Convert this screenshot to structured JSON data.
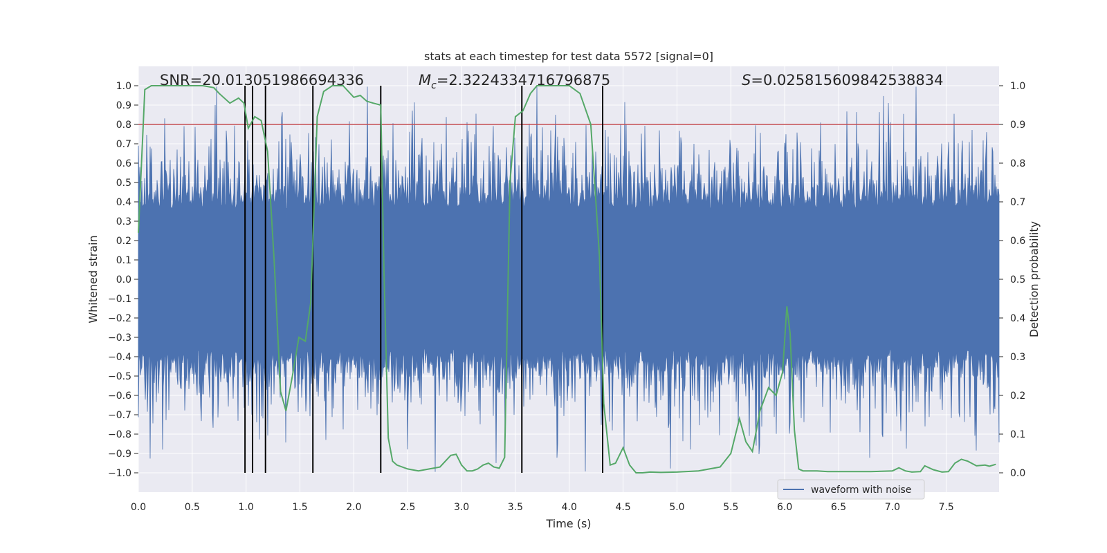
{
  "chart_data": {
    "type": "line",
    "title": "stats at each timestep for test data 5572 [signal=0]",
    "xlabel": "Time (s)",
    "ylabel": "Whitened strain",
    "y2label": "Detection probability",
    "xlim": [
      0.0,
      7.99
    ],
    "ylim": [
      -1.1,
      1.1
    ],
    "y2lim": [
      -0.05,
      1.05
    ],
    "x_ticks": [
      "0.0",
      "0.5",
      "1.0",
      "1.5",
      "2.0",
      "2.5",
      "3.0",
      "3.5",
      "4.0",
      "4.5",
      "5.0",
      "5.5",
      "6.0",
      "6.5",
      "7.0",
      "7.5"
    ],
    "y_ticks": [
      "−1.0",
      "−0.9",
      "−0.8",
      "−0.7",
      "−0.6",
      "−0.5",
      "−0.4",
      "−0.3",
      "−0.2",
      "−0.1",
      "0.0",
      "0.1",
      "0.2",
      "0.3",
      "0.4",
      "0.5",
      "0.6",
      "0.7",
      "0.8",
      "0.9",
      "1.0"
    ],
    "y2_ticks": [
      "0.0",
      "0.1",
      "0.2",
      "0.3",
      "0.4",
      "0.5",
      "0.6",
      "0.7",
      "0.8",
      "0.9",
      "1.0"
    ],
    "grid": true,
    "annotations": {
      "snr": "SNR=20.013051986694336",
      "mc_symbol": "M",
      "mc_sub": "c",
      "mc_value": "=2.3224334716796875",
      "s_symbol": "S",
      "s_value": "=0.025815609842538834"
    },
    "threshold": {
      "value": 0.8,
      "color": "#c44e52",
      "axis": "left"
    },
    "event_lines": [
      0.99,
      1.06,
      1.18,
      1.62,
      2.25,
      3.56,
      4.31
    ],
    "legend": {
      "entries": [
        "waveform with noise"
      ],
      "placement": "lower right"
    },
    "series": [
      {
        "name": "waveform with noise",
        "color": "#4c72b0",
        "axis": "left",
        "description": "dense whitened noise band roughly ±0.4 with spikes up to ±1.0"
      },
      {
        "name": "detection probability",
        "color": "#55a868",
        "axis": "right",
        "x": [
          0.0,
          0.06,
          0.12,
          0.2,
          0.3,
          0.4,
          0.5,
          0.6,
          0.7,
          0.75,
          0.85,
          0.93,
          0.98,
          1.02,
          1.08,
          1.14,
          1.2,
          1.26,
          1.32,
          1.37,
          1.43,
          1.49,
          1.55,
          1.6,
          1.66,
          1.72,
          1.8,
          1.9,
          2.0,
          2.06,
          2.12,
          2.18,
          2.25,
          2.28,
          2.32,
          2.36,
          2.4,
          2.5,
          2.6,
          2.7,
          2.8,
          2.9,
          2.95,
          3.0,
          3.05,
          3.1,
          3.15,
          3.2,
          3.25,
          3.3,
          3.35,
          3.4,
          3.45,
          3.5,
          3.57,
          3.64,
          3.7,
          3.75,
          3.81,
          3.88,
          4.0,
          4.1,
          4.2,
          4.28,
          4.32,
          4.38,
          4.43,
          4.5,
          4.56,
          4.62,
          4.68,
          4.75,
          4.85,
          5.0,
          5.2,
          5.4,
          5.5,
          5.58,
          5.64,
          5.7,
          5.77,
          5.85,
          5.92,
          5.98,
          6.02,
          6.05,
          6.09,
          6.13,
          6.17,
          6.2,
          6.3,
          6.4,
          6.5,
          6.6,
          6.8,
          7.0,
          7.06,
          7.12,
          7.18,
          7.26,
          7.3,
          7.38,
          7.46,
          7.52,
          7.58,
          7.64,
          7.7,
          7.78,
          7.86,
          7.9,
          7.96
        ],
        "values": [
          0.62,
          0.99,
          1.0,
          1.0,
          1.0,
          1.0,
          1.0,
          1.0,
          0.995,
          0.98,
          0.955,
          0.968,
          0.955,
          0.89,
          0.92,
          0.91,
          0.83,
          0.55,
          0.21,
          0.16,
          0.25,
          0.35,
          0.34,
          0.44,
          0.92,
          0.985,
          1.0,
          1.0,
          0.97,
          0.975,
          0.96,
          0.955,
          0.95,
          0.52,
          0.09,
          0.03,
          0.02,
          0.01,
          0.005,
          0.01,
          0.015,
          0.045,
          0.048,
          0.02,
          0.005,
          0.005,
          0.01,
          0.02,
          0.025,
          0.015,
          0.012,
          0.04,
          0.75,
          0.92,
          0.935,
          0.98,
          1.0,
          1.0,
          1.0,
          1.0,
          1.0,
          0.98,
          0.9,
          0.56,
          0.18,
          0.02,
          0.025,
          0.065,
          0.02,
          0.0,
          0.0,
          0.002,
          0.001,
          0.002,
          0.005,
          0.015,
          0.05,
          0.14,
          0.08,
          0.055,
          0.16,
          0.22,
          0.2,
          0.26,
          0.43,
          0.36,
          0.11,
          0.01,
          0.005,
          0.005,
          0.005,
          0.003,
          0.003,
          0.003,
          0.003,
          0.005,
          0.013,
          0.005,
          0.002,
          0.003,
          0.018,
          0.008,
          0.002,
          0.003,
          0.025,
          0.035,
          0.03,
          0.018,
          0.02,
          0.017,
          0.022
        ]
      }
    ]
  }
}
